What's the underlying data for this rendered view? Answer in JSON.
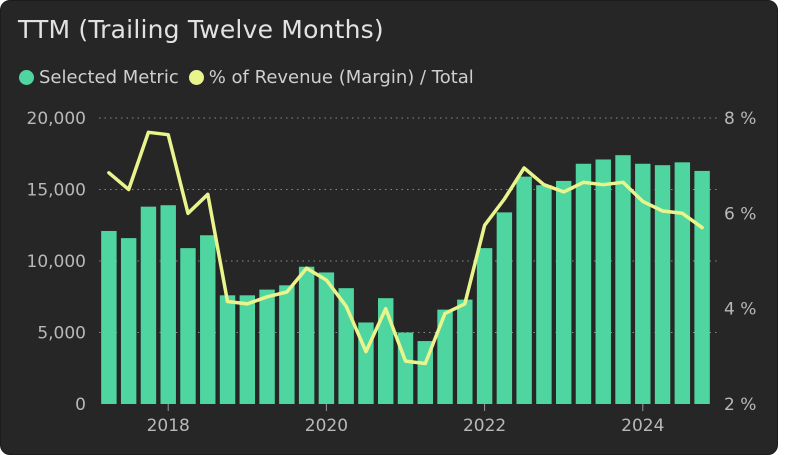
{
  "title": "TTM (Trailing Twelve Months)",
  "legend": [
    {
      "label": "Selected Metric",
      "color": "#4fd6a0"
    },
    {
      "label": "% of Revenue (Margin) / Total",
      "color": "#e9f58c"
    }
  ],
  "chart_data": {
    "type": "bar",
    "x_tick_labels": [
      "2018",
      "2020",
      "2022",
      "2024"
    ],
    "y_left": {
      "min": 0,
      "max": 20000,
      "ticks": [
        "20,000",
        "15,000",
        "10,000",
        "5,000",
        "0"
      ],
      "tick_values": [
        20000,
        15000,
        10000,
        5000,
        0
      ]
    },
    "y_right": {
      "min": 2,
      "max": 8,
      "ticks": [
        "8 %",
        "6 %",
        "4 %",
        "2 %"
      ],
      "tick_values": [
        8,
        6,
        4,
        2
      ]
    },
    "grid": "dotted-horizontal",
    "series": [
      {
        "name": "Selected Metric",
        "type": "bar",
        "color": "#4fd6a0",
        "values": [
          12100,
          11600,
          13800,
          13900,
          10900,
          11800,
          7600,
          7600,
          8000,
          8300,
          9600,
          9200,
          8100,
          5700,
          7400,
          5000,
          4400,
          6600,
          7300,
          10900,
          13400,
          15900,
          15300,
          15600,
          16800,
          17100,
          17400,
          16800,
          16700,
          16900,
          16300
        ]
      },
      {
        "name": "% of Revenue (Margin) / Total",
        "type": "line",
        "color": "#e9f58c",
        "axis": "right",
        "values": [
          6.85,
          6.5,
          7.7,
          7.65,
          6.0,
          6.4,
          4.15,
          4.1,
          4.25,
          4.35,
          4.85,
          4.6,
          4.05,
          3.1,
          4.0,
          2.9,
          2.85,
          3.9,
          4.1,
          5.75,
          6.3,
          6.95,
          6.6,
          6.45,
          6.65,
          6.6,
          6.65,
          6.25,
          6.05,
          6.0,
          5.7
        ]
      }
    ],
    "x_tick_indices": [
      3,
      11,
      19,
      27
    ]
  }
}
